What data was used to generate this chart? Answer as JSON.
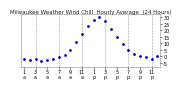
{
  "title": "Milwaukee Weather Wind Chill  Hourly Average  (24 Hours)",
  "hours": [
    1,
    2,
    3,
    4,
    5,
    6,
    7,
    8,
    9,
    10,
    11,
    12,
    13,
    14,
    15,
    16,
    17,
    18,
    19,
    20,
    21,
    22,
    23,
    24
  ],
  "wind_chill": [
    -2,
    -3,
    -2,
    -4,
    -3,
    -2,
    -1,
    1,
    5,
    11,
    17,
    23,
    28,
    30,
    27,
    21,
    15,
    9,
    5,
    2,
    0,
    -1,
    -2,
    0
  ],
  "line_color": "#0000cc",
  "marker_size": 2,
  "grid_color": "#999999",
  "grid_style": "--",
  "bg_color": "#ffffff",
  "title_fontsize": 4,
  "tick_fontsize": 3.5,
  "ylim": [
    -8,
    32
  ],
  "yticks": [
    -5,
    0,
    5,
    10,
    15,
    20,
    25,
    30
  ],
  "xtick_major": [
    1,
    3,
    5,
    7,
    9,
    11,
    13,
    15,
    17,
    19,
    21,
    23
  ],
  "vgrid_at": [
    3,
    7,
    11,
    15,
    19,
    23
  ],
  "xlim": [
    0.5,
    24.5
  ]
}
